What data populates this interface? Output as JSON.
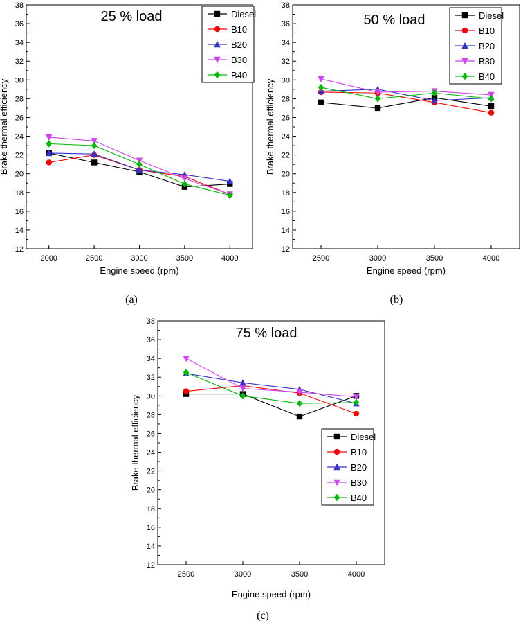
{
  "chart_data": [
    {
      "type": "line",
      "panel": "(a)",
      "title": "25 % load",
      "xlabel": "Engine speed (rpm)",
      "ylabel": "Brake thermal efficiency",
      "x": [
        2000,
        2500,
        3000,
        3500,
        4000
      ],
      "xlim": [
        1750,
        4250
      ],
      "ylim": [
        12,
        38
      ],
      "yticks": [
        12,
        14,
        16,
        18,
        20,
        22,
        24,
        26,
        28,
        30,
        32,
        34,
        36,
        38
      ],
      "legend": "top-right",
      "series": [
        {
          "name": "Diesel",
          "color": "#000000",
          "marker": "square",
          "values": [
            22.2,
            21.2,
            20.2,
            18.6,
            18.9
          ]
        },
        {
          "name": "B10",
          "color": "#ff0000",
          "marker": "circle",
          "values": [
            21.2,
            22.0,
            20.4,
            19.7,
            17.8
          ]
        },
        {
          "name": "B20",
          "color": "#3333cc",
          "marker": "triangle-up",
          "values": [
            22.2,
            22.1,
            20.4,
            19.9,
            19.2
          ]
        },
        {
          "name": "B30",
          "color": "#cc44ee",
          "marker": "triangle-down",
          "values": [
            23.9,
            23.5,
            21.4,
            19.5,
            17.8
          ]
        },
        {
          "name": "B40",
          "color": "#00bb00",
          "marker": "diamond",
          "values": [
            23.2,
            23.0,
            21.0,
            18.9,
            17.7
          ]
        }
      ]
    },
    {
      "type": "line",
      "panel": "(b)",
      "title": "50 % load",
      "xlabel": "Engine speed (rpm)",
      "ylabel": "Brake thermal efficiency",
      "x": [
        2500,
        3000,
        3500,
        4000
      ],
      "xlim": [
        2250,
        4250
      ],
      "ylim": [
        12,
        38
      ],
      "yticks": [
        12,
        14,
        16,
        18,
        20,
        22,
        24,
        26,
        28,
        30,
        32,
        34,
        36,
        38
      ],
      "legend": "top-right",
      "series": [
        {
          "name": "Diesel",
          "color": "#000000",
          "marker": "square",
          "values": [
            27.6,
            27.0,
            28.1,
            27.2
          ]
        },
        {
          "name": "B10",
          "color": "#ff0000",
          "marker": "circle",
          "values": [
            28.7,
            28.6,
            27.6,
            26.5
          ]
        },
        {
          "name": "B20",
          "color": "#3333cc",
          "marker": "triangle-up",
          "values": [
            28.8,
            29.0,
            27.8,
            28.1
          ]
        },
        {
          "name": "B30",
          "color": "#cc44ee",
          "marker": "triangle-down",
          "values": [
            30.1,
            28.7,
            28.8,
            28.4
          ]
        },
        {
          "name": "B40",
          "color": "#00bb00",
          "marker": "diamond",
          "values": [
            29.2,
            28.0,
            28.6,
            28.0
          ]
        }
      ]
    },
    {
      "type": "line",
      "panel": "(c)",
      "title": "75 % load",
      "xlabel": "Engine speed (rpm)",
      "ylabel": "Brake thermal efficiency",
      "x": [
        2500,
        3000,
        3500,
        4000
      ],
      "xlim": [
        2250,
        4250
      ],
      "ylim": [
        12,
        38
      ],
      "yticks": [
        12,
        14,
        16,
        18,
        20,
        22,
        24,
        26,
        28,
        30,
        32,
        34,
        36,
        38
      ],
      "legend": "bottom-right",
      "series": [
        {
          "name": "Diesel",
          "color": "#000000",
          "marker": "square",
          "values": [
            30.2,
            30.2,
            27.8,
            30.0
          ]
        },
        {
          "name": "B10",
          "color": "#ff0000",
          "marker": "circle",
          "values": [
            30.5,
            31.1,
            30.3,
            28.1
          ]
        },
        {
          "name": "B20",
          "color": "#3333cc",
          "marker": "triangle-up",
          "values": [
            32.4,
            31.4,
            30.7,
            29.2
          ]
        },
        {
          "name": "B30",
          "color": "#cc44ee",
          "marker": "triangle-down",
          "values": [
            34.0,
            30.8,
            30.4,
            29.9
          ]
        },
        {
          "name": "B40",
          "color": "#00bb00",
          "marker": "diamond",
          "values": [
            32.5,
            30.0,
            29.2,
            29.3
          ]
        }
      ]
    }
  ]
}
